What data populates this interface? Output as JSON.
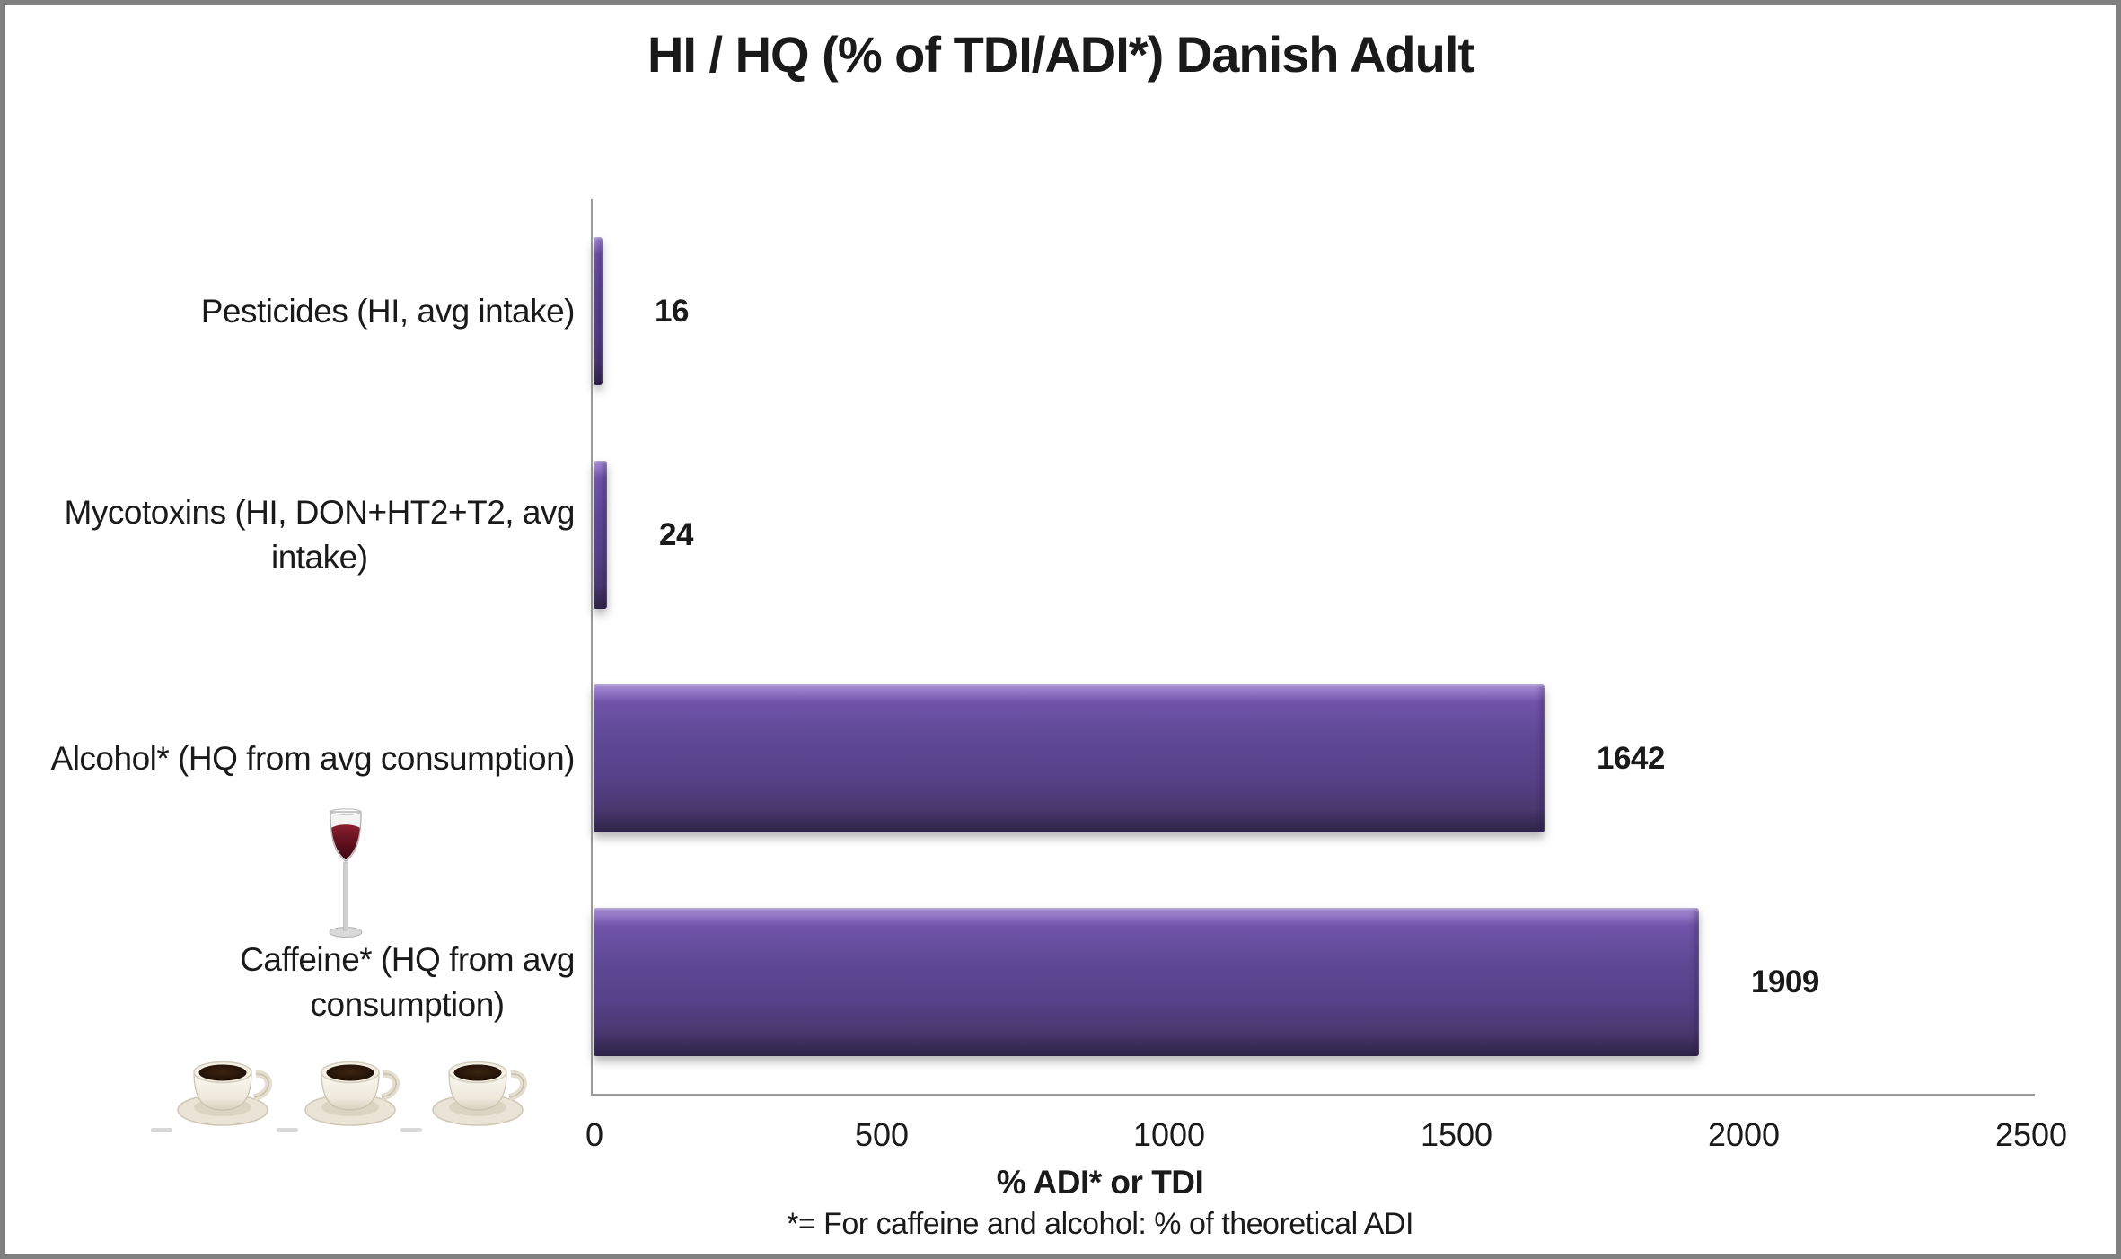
{
  "figure": {
    "title": "HI / HQ (% of TDI/ADI*) Danish Adult",
    "footnote": "*= For caffeine and alcohol: % of theoretical ADI"
  },
  "chart_data": {
    "type": "bar",
    "orientation": "horizontal",
    "title": "HI / HQ (% of TDI/ADI*) Danish Adult",
    "categories": [
      "Pesticides (HI, avg intake)",
      "Mycotoxins (HI, DON+HT2+T2, avg intake)",
      "Alcohol* (HQ from avg consumption)",
      "Caffeine* (HQ from avg consumption)"
    ],
    "category_label_lines": [
      [
        "Pesticides (HI, avg intake)"
      ],
      [
        "Mycotoxins (HI, DON+HT2+T2, avg",
        "intake)"
      ],
      [
        "Alcohol* (HQ from avg consumption)"
      ],
      [
        "Caffeine* (HQ from avg",
        "consumption)"
      ]
    ],
    "values": [
      16,
      24,
      1642,
      1909
    ],
    "value_labels": [
      "16",
      "24",
      "1642",
      "1909"
    ],
    "xlabel": "% ADI* or TDI",
    "x_ticks": [
      0,
      500,
      1000,
      1500,
      2000,
      2500
    ],
    "xlim": [
      0,
      2500
    ],
    "grid": false,
    "legend": false,
    "category_order": "top-to-bottom",
    "bar_color": "#5E4894",
    "bar_gradient": [
      "#A98FD8",
      "#7054A8",
      "#5E4894",
      "#4A386F",
      "#2E2547"
    ]
  },
  "icons": [
    {
      "name": "wine-glass-icon",
      "category": "Alcohol* (HQ from avg consumption)",
      "count": 1
    },
    {
      "name": "coffee-cup-icon",
      "category": "Caffeine* (HQ from avg consumption)",
      "count": 3
    }
  ],
  "colors": {
    "background": "#FFFFFF",
    "frame_border": "#808080",
    "axis_line": "#9B9B9B",
    "text": "#1A1A1A",
    "wine": "#6E1322",
    "coffee": "#241307"
  }
}
